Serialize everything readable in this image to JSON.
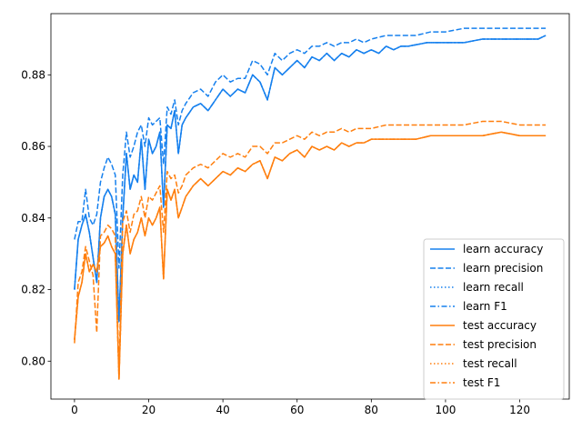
{
  "chart_data": {
    "type": "line",
    "title": "",
    "xlabel": "",
    "ylabel": "",
    "xlim": [
      -6.35,
      133.35
    ],
    "ylim": [
      0.7894,
      0.8971
    ],
    "xticks": [
      0,
      20,
      40,
      60,
      80,
      100,
      120
    ],
    "xtick_labels": [
      "0",
      "20",
      "40",
      "60",
      "80",
      "100",
      "120"
    ],
    "yticks": [
      0.8,
      0.82,
      0.84,
      0.86,
      0.88
    ],
    "ytick_labels": [
      "0.80",
      "0.82",
      "0.84",
      "0.86",
      "0.88"
    ],
    "grid": false,
    "legend_position": "lower-right",
    "colors": {
      "learn": "#1680ee",
      "test": "#ff7f0e"
    },
    "anchors": {
      "learn_accuracy": [
        [
          0,
          0.82
        ],
        [
          1,
          0.834
        ],
        [
          2,
          0.838
        ],
        [
          3,
          0.841
        ],
        [
          4,
          0.836
        ],
        [
          5,
          0.829
        ],
        [
          6,
          0.822
        ],
        [
          7,
          0.84
        ],
        [
          8,
          0.846
        ],
        [
          9,
          0.848
        ],
        [
          10,
          0.846
        ],
        [
          11,
          0.841
        ],
        [
          12,
          0.811
        ],
        [
          13,
          0.84
        ],
        [
          14,
          0.858
        ],
        [
          15,
          0.848
        ],
        [
          16,
          0.852
        ],
        [
          17,
          0.85
        ],
        [
          18,
          0.862
        ],
        [
          19,
          0.848
        ],
        [
          20,
          0.862
        ],
        [
          21,
          0.858
        ],
        [
          22,
          0.86
        ],
        [
          23,
          0.864
        ],
        [
          24,
          0.843
        ],
        [
          25,
          0.866
        ],
        [
          26,
          0.865
        ],
        [
          27,
          0.87
        ],
        [
          28,
          0.858
        ],
        [
          29,
          0.866
        ],
        [
          30,
          0.868
        ],
        [
          32,
          0.871
        ],
        [
          34,
          0.872
        ],
        [
          36,
          0.87
        ],
        [
          38,
          0.873
        ],
        [
          40,
          0.876
        ],
        [
          42,
          0.874
        ],
        [
          44,
          0.876
        ],
        [
          46,
          0.875
        ],
        [
          48,
          0.88
        ],
        [
          50,
          0.878
        ],
        [
          52,
          0.873
        ],
        [
          54,
          0.882
        ],
        [
          56,
          0.88
        ],
        [
          58,
          0.882
        ],
        [
          60,
          0.884
        ],
        [
          62,
          0.882
        ],
        [
          64,
          0.885
        ],
        [
          66,
          0.884
        ],
        [
          68,
          0.886
        ],
        [
          70,
          0.884
        ],
        [
          72,
          0.886
        ],
        [
          74,
          0.885
        ],
        [
          76,
          0.887
        ],
        [
          78,
          0.886
        ],
        [
          80,
          0.887
        ],
        [
          82,
          0.886
        ],
        [
          84,
          0.888
        ],
        [
          86,
          0.887
        ],
        [
          88,
          0.888
        ],
        [
          90,
          0.888
        ],
        [
          95,
          0.889
        ],
        [
          100,
          0.889
        ],
        [
          105,
          0.889
        ],
        [
          110,
          0.89
        ],
        [
          115,
          0.89
        ],
        [
          120,
          0.89
        ],
        [
          125,
          0.89
        ],
        [
          127,
          0.891
        ]
      ],
      "learn_precision": [
        [
          0,
          0.834
        ],
        [
          1,
          0.839
        ],
        [
          2,
          0.839
        ],
        [
          3,
          0.848
        ],
        [
          4,
          0.84
        ],
        [
          5,
          0.838
        ],
        [
          6,
          0.841
        ],
        [
          7,
          0.85
        ],
        [
          8,
          0.854
        ],
        [
          9,
          0.857
        ],
        [
          10,
          0.855
        ],
        [
          11,
          0.852
        ],
        [
          12,
          0.826
        ],
        [
          13,
          0.852
        ],
        [
          14,
          0.864
        ],
        [
          15,
          0.857
        ],
        [
          16,
          0.86
        ],
        [
          17,
          0.864
        ],
        [
          18,
          0.866
        ],
        [
          19,
          0.86
        ],
        [
          20,
          0.868
        ],
        [
          21,
          0.866
        ],
        [
          22,
          0.867
        ],
        [
          23,
          0.868
        ],
        [
          24,
          0.855
        ],
        [
          25,
          0.871
        ],
        [
          26,
          0.869
        ],
        [
          27,
          0.873
        ],
        [
          28,
          0.866
        ],
        [
          29,
          0.87
        ],
        [
          30,
          0.872
        ],
        [
          32,
          0.875
        ],
        [
          34,
          0.876
        ],
        [
          36,
          0.874
        ],
        [
          38,
          0.878
        ],
        [
          40,
          0.88
        ],
        [
          42,
          0.878
        ],
        [
          44,
          0.879
        ],
        [
          46,
          0.879
        ],
        [
          48,
          0.884
        ],
        [
          50,
          0.883
        ],
        [
          52,
          0.88
        ],
        [
          54,
          0.886
        ],
        [
          56,
          0.884
        ],
        [
          58,
          0.886
        ],
        [
          60,
          0.887
        ],
        [
          62,
          0.886
        ],
        [
          64,
          0.888
        ],
        [
          66,
          0.888
        ],
        [
          68,
          0.889
        ],
        [
          70,
          0.888
        ],
        [
          72,
          0.889
        ],
        [
          74,
          0.889
        ],
        [
          76,
          0.89
        ],
        [
          78,
          0.889
        ],
        [
          80,
          0.89
        ],
        [
          84,
          0.891
        ],
        [
          88,
          0.891
        ],
        [
          92,
          0.891
        ],
        [
          96,
          0.892
        ],
        [
          100,
          0.892
        ],
        [
          105,
          0.893
        ],
        [
          110,
          0.893
        ],
        [
          115,
          0.893
        ],
        [
          120,
          0.893
        ],
        [
          125,
          0.893
        ],
        [
          127,
          0.893
        ]
      ],
      "test_accuracy": [
        [
          0,
          0.806
        ],
        [
          1,
          0.818
        ],
        [
          2,
          0.822
        ],
        [
          3,
          0.83
        ],
        [
          4,
          0.825
        ],
        [
          5,
          0.827
        ],
        [
          6,
          0.825
        ],
        [
          7,
          0.832
        ],
        [
          8,
          0.833
        ],
        [
          9,
          0.835
        ],
        [
          10,
          0.832
        ],
        [
          11,
          0.83
        ],
        [
          12,
          0.795
        ],
        [
          13,
          0.83
        ],
        [
          14,
          0.838
        ],
        [
          15,
          0.83
        ],
        [
          16,
          0.834
        ],
        [
          17,
          0.836
        ],
        [
          18,
          0.84
        ],
        [
          19,
          0.835
        ],
        [
          20,
          0.84
        ],
        [
          21,
          0.838
        ],
        [
          22,
          0.84
        ],
        [
          23,
          0.843
        ],
        [
          24,
          0.823
        ],
        [
          25,
          0.848
        ],
        [
          26,
          0.845
        ],
        [
          27,
          0.848
        ],
        [
          28,
          0.84
        ],
        [
          29,
          0.843
        ],
        [
          30,
          0.846
        ],
        [
          32,
          0.849
        ],
        [
          34,
          0.851
        ],
        [
          36,
          0.849
        ],
        [
          38,
          0.851
        ],
        [
          40,
          0.853
        ],
        [
          42,
          0.852
        ],
        [
          44,
          0.854
        ],
        [
          46,
          0.853
        ],
        [
          48,
          0.855
        ],
        [
          50,
          0.856
        ],
        [
          52,
          0.851
        ],
        [
          54,
          0.857
        ],
        [
          56,
          0.856
        ],
        [
          58,
          0.858
        ],
        [
          60,
          0.859
        ],
        [
          62,
          0.857
        ],
        [
          64,
          0.86
        ],
        [
          66,
          0.859
        ],
        [
          68,
          0.86
        ],
        [
          70,
          0.859
        ],
        [
          72,
          0.861
        ],
        [
          74,
          0.86
        ],
        [
          76,
          0.861
        ],
        [
          78,
          0.861
        ],
        [
          80,
          0.862
        ],
        [
          84,
          0.862
        ],
        [
          88,
          0.862
        ],
        [
          92,
          0.862
        ],
        [
          96,
          0.863
        ],
        [
          100,
          0.863
        ],
        [
          105,
          0.863
        ],
        [
          110,
          0.863
        ],
        [
          115,
          0.864
        ],
        [
          120,
          0.863
        ],
        [
          125,
          0.863
        ],
        [
          127,
          0.863
        ]
      ],
      "test_precision": [
        [
          0,
          0.805
        ],
        [
          1,
          0.822
        ],
        [
          2,
          0.825
        ],
        [
          3,
          0.832
        ],
        [
          4,
          0.828
        ],
        [
          5,
          0.824
        ],
        [
          6,
          0.808
        ],
        [
          7,
          0.835
        ],
        [
          8,
          0.836
        ],
        [
          9,
          0.838
        ],
        [
          10,
          0.837
        ],
        [
          11,
          0.835
        ],
        [
          12,
          0.797
        ],
        [
          13,
          0.839
        ],
        [
          14,
          0.842
        ],
        [
          15,
          0.836
        ],
        [
          16,
          0.841
        ],
        [
          17,
          0.842
        ],
        [
          18,
          0.846
        ],
        [
          19,
          0.84
        ],
        [
          20,
          0.846
        ],
        [
          21,
          0.845
        ],
        [
          22,
          0.847
        ],
        [
          23,
          0.849
        ],
        [
          24,
          0.836
        ],
        [
          25,
          0.853
        ],
        [
          26,
          0.851
        ],
        [
          27,
          0.852
        ],
        [
          28,
          0.847
        ],
        [
          29,
          0.849
        ],
        [
          30,
          0.852
        ],
        [
          32,
          0.854
        ],
        [
          34,
          0.855
        ],
        [
          36,
          0.854
        ],
        [
          38,
          0.856
        ],
        [
          40,
          0.858
        ],
        [
          42,
          0.857
        ],
        [
          44,
          0.858
        ],
        [
          46,
          0.857
        ],
        [
          48,
          0.86
        ],
        [
          50,
          0.86
        ],
        [
          52,
          0.858
        ],
        [
          54,
          0.861
        ],
        [
          56,
          0.861
        ],
        [
          58,
          0.862
        ],
        [
          60,
          0.863
        ],
        [
          62,
          0.862
        ],
        [
          64,
          0.864
        ],
        [
          66,
          0.863
        ],
        [
          68,
          0.864
        ],
        [
          70,
          0.864
        ],
        [
          72,
          0.865
        ],
        [
          74,
          0.864
        ],
        [
          76,
          0.865
        ],
        [
          78,
          0.865
        ],
        [
          80,
          0.865
        ],
        [
          84,
          0.866
        ],
        [
          88,
          0.866
        ],
        [
          92,
          0.866
        ],
        [
          96,
          0.866
        ],
        [
          100,
          0.866
        ],
        [
          105,
          0.866
        ],
        [
          110,
          0.867
        ],
        [
          115,
          0.867
        ],
        [
          120,
          0.866
        ],
        [
          125,
          0.866
        ],
        [
          127,
          0.866
        ]
      ]
    },
    "series": [
      {
        "name": "learn accuracy",
        "group": "learn",
        "dash": "solid",
        "source": "learn_accuracy"
      },
      {
        "name": "learn precision",
        "group": "learn",
        "dash": "dashed",
        "source": "learn_precision"
      },
      {
        "name": "learn recall",
        "group": "learn",
        "dash": "dotted",
        "source": "learn_accuracy"
      },
      {
        "name": "learn F1",
        "group": "learn",
        "dash": "dashdot",
        "source": "learn_accuracy"
      },
      {
        "name": "test accuracy",
        "group": "test",
        "dash": "solid",
        "source": "test_accuracy"
      },
      {
        "name": "test precision",
        "group": "test",
        "dash": "dashed",
        "source": "test_precision"
      },
      {
        "name": "test recall",
        "group": "test",
        "dash": "dotted",
        "source": "test_accuracy"
      },
      {
        "name": "test F1",
        "group": "test",
        "dash": "dashdot",
        "source": "test_accuracy"
      }
    ]
  }
}
